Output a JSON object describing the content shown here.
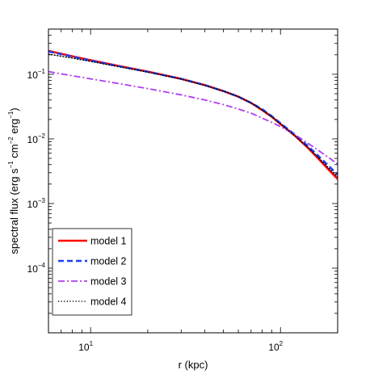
{
  "chart_data": {
    "type": "line",
    "title": "",
    "xlabel": "r (kpc)",
    "ylabel_parts": [
      "spectral flux (erg s",
      "−1",
      " cm",
      "−2",
      " erg",
      "−1",
      ")"
    ],
    "xscale": "log",
    "yscale": "log",
    "xlim": [
      6,
      200
    ],
    "ylim": [
      1e-05,
      0.5
    ],
    "x_ticks": [
      {
        "value": 10,
        "base": "10",
        "exp": "1"
      },
      {
        "value": 100,
        "base": "10",
        "exp": "2"
      }
    ],
    "y_ticks": [
      {
        "value": 0.1,
        "base": "10",
        "exp": "−1"
      },
      {
        "value": 0.01,
        "base": "10",
        "exp": "−2"
      },
      {
        "value": 0.001,
        "base": "10",
        "exp": "−3"
      },
      {
        "value": 0.0001,
        "base": "10",
        "exp": "−4"
      }
    ],
    "grid": false,
    "legend_position": "bottom-left",
    "series": [
      {
        "name": "model 1",
        "color": "#ff0000",
        "dash": "solid",
        "x": [
          6,
          8,
          10,
          14,
          20,
          30,
          40,
          50,
          60,
          70,
          80,
          90,
          100,
          120,
          140,
          160,
          180,
          200
        ],
        "y": [
          0.23,
          0.19,
          0.165,
          0.135,
          0.11,
          0.085,
          0.068,
          0.055,
          0.045,
          0.036,
          0.028,
          0.022,
          0.017,
          0.011,
          0.0072,
          0.0048,
          0.0033,
          0.0024
        ]
      },
      {
        "name": "model 2",
        "color": "#1f3ff5",
        "dash": "dashed",
        "x": [
          6,
          8,
          10,
          14,
          20,
          30,
          40,
          50,
          60,
          70,
          80,
          90,
          100,
          120,
          140,
          160,
          180,
          200
        ],
        "y": [
          0.225,
          0.188,
          0.163,
          0.134,
          0.109,
          0.085,
          0.068,
          0.055,
          0.045,
          0.036,
          0.029,
          0.0225,
          0.0175,
          0.0114,
          0.0077,
          0.0053,
          0.0038,
          0.0028
        ]
      },
      {
        "name": "model 3",
        "color": "#b13cf0",
        "dash": "dashdot",
        "x": [
          6,
          8,
          10,
          14,
          20,
          30,
          40,
          50,
          60,
          70,
          80,
          90,
          100,
          120,
          140,
          160,
          180,
          200
        ],
        "y": [
          0.11,
          0.095,
          0.085,
          0.072,
          0.06,
          0.048,
          0.04,
          0.034,
          0.029,
          0.025,
          0.021,
          0.018,
          0.0155,
          0.0115,
          0.0085,
          0.0065,
          0.0051,
          0.0041
        ]
      },
      {
        "name": "model 4",
        "color": "#000000",
        "dash": "dotted",
        "x": [
          6,
          8,
          10,
          14,
          20,
          30,
          40,
          50,
          60,
          70,
          80,
          90,
          100,
          120,
          140,
          160,
          180,
          200
        ],
        "y": [
          0.205,
          0.178,
          0.158,
          0.131,
          0.108,
          0.084,
          0.067,
          0.055,
          0.045,
          0.036,
          0.028,
          0.022,
          0.017,
          0.011,
          0.0073,
          0.005,
          0.0035,
          0.0026
        ]
      }
    ]
  }
}
